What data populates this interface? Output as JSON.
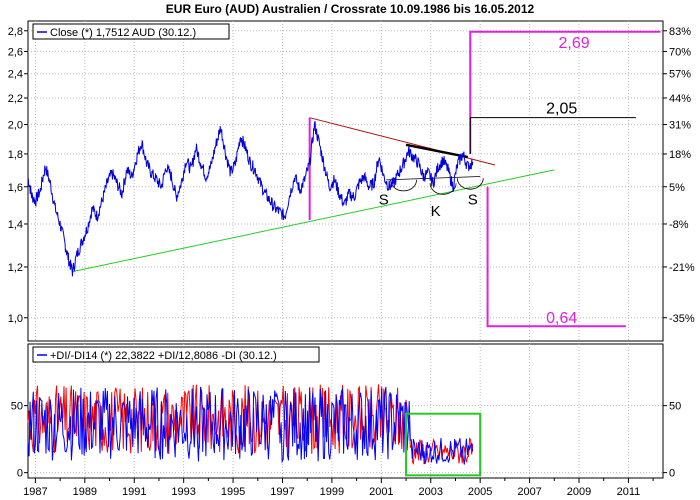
{
  "chart_data": [
    {
      "type": "line",
      "title": "EUR Euro (AUD) Australien / Crossrate 10.09.1986 bis 16.05.2012",
      "legend": "Close (*) 1,7512 AUD (30.12.)",
      "y_scale": "log",
      "ylim": [
        0.92,
        2.9
      ],
      "y_ticks": [
        "1,0",
        "1,2",
        "1,4",
        "1,6",
        "1,8",
        "2,0",
        "2,2",
        "2,4",
        "2,6",
        "2,8"
      ],
      "y_ticks_values": [
        1.0,
        1.2,
        1.4,
        1.6,
        1.8,
        2.0,
        2.2,
        2.4,
        2.6,
        2.8
      ],
      "y2_ticks": [
        "-35%",
        "-21%",
        "-8%",
        "5%",
        "18%",
        "31%",
        "44%",
        "57%",
        "70%",
        "83%"
      ],
      "x_ticks": [
        "1987",
        "1989",
        "1991",
        "1993",
        "1995",
        "1997",
        "1999",
        "2001",
        "2003",
        "2005",
        "2007",
        "2009",
        "2011"
      ],
      "xlim": [
        1986.7,
        2012.4
      ],
      "grid": true,
      "series": [
        {
          "name": "Close",
          "color": "#0000dd",
          "x": [
            1986.7,
            1986.85,
            1987.0,
            1987.2,
            1987.4,
            1987.6,
            1987.8,
            1988.0,
            1988.2,
            1988.35,
            1988.5,
            1988.7,
            1988.9,
            1989.1,
            1989.3,
            1989.5,
            1989.7,
            1989.9,
            1990.1,
            1990.3,
            1990.5,
            1990.7,
            1990.9,
            1991.1,
            1991.3,
            1991.5,
            1991.7,
            1991.9,
            1992.1,
            1992.3,
            1992.5,
            1992.7,
            1992.9,
            1993.1,
            1993.3,
            1993.5,
            1993.7,
            1993.9,
            1994.1,
            1994.3,
            1994.5,
            1994.7,
            1994.9,
            1995.1,
            1995.3,
            1995.5,
            1995.7,
            1995.9,
            1996.1,
            1996.3,
            1996.5,
            1996.7,
            1996.9,
            1997.1,
            1997.3,
            1997.5,
            1997.7,
            1997.9,
            1998.1,
            1998.3,
            1998.5,
            1998.7,
            1998.9,
            1999.1,
            1999.3,
            1999.5,
            1999.7,
            1999.9,
            2000.1,
            2000.3,
            2000.5,
            2000.7,
            2000.9,
            2001.1,
            2001.3,
            2001.5,
            2001.7,
            2001.9,
            2002.1,
            2002.3,
            2002.5,
            2002.7,
            2002.9,
            2003.1,
            2003.3,
            2003.5,
            2003.7,
            2003.9,
            2004.1,
            2004.3,
            2004.5,
            2004.7
          ],
          "values": [
            1.65,
            1.55,
            1.52,
            1.58,
            1.72,
            1.62,
            1.48,
            1.4,
            1.3,
            1.23,
            1.18,
            1.26,
            1.32,
            1.38,
            1.48,
            1.44,
            1.52,
            1.62,
            1.68,
            1.62,
            1.56,
            1.7,
            1.66,
            1.78,
            1.88,
            1.74,
            1.68,
            1.64,
            1.6,
            1.72,
            1.66,
            1.54,
            1.62,
            1.76,
            1.7,
            1.84,
            1.74,
            1.66,
            1.72,
            1.86,
            1.98,
            1.8,
            1.68,
            1.74,
            1.92,
            1.84,
            1.74,
            1.7,
            1.62,
            1.56,
            1.52,
            1.48,
            1.46,
            1.44,
            1.56,
            1.66,
            1.58,
            1.64,
            1.74,
            2.0,
            1.86,
            1.72,
            1.6,
            1.64,
            1.56,
            1.5,
            1.56,
            1.54,
            1.62,
            1.66,
            1.6,
            1.62,
            1.78,
            1.66,
            1.6,
            1.62,
            1.68,
            1.74,
            1.82,
            1.78,
            1.74,
            1.66,
            1.68,
            1.62,
            1.72,
            1.76,
            1.7,
            1.6,
            1.74,
            1.8,
            1.72,
            1.75
          ]
        }
      ],
      "annotations": {
        "values": [
          "2,69",
          "2,05",
          "0,64"
        ],
        "patterns": [
          "S",
          "K",
          "S"
        ]
      }
    },
    {
      "type": "line",
      "legend": "+DI/-DI14 (*) 22,3822 +DI/12,8086 -DI (30.12.)",
      "ylim": [
        -4,
        96
      ],
      "y_ticks": [
        "0",
        "50"
      ],
      "y_ticks_values": [
        0,
        50
      ],
      "grid": true,
      "series": [
        {
          "name": "+DI",
          "color": "#0000ff",
          "x_range": [
            1986.7,
            2004.7
          ],
          "values": []
        },
        {
          "name": "-DI",
          "color": "#ff0000",
          "x_range": [
            1986.7,
            2004.7
          ],
          "values": []
        }
      ]
    }
  ],
  "colors": {
    "price": "#0000dd",
    "plus_di": "#0000ff",
    "minus_di": "#ff0000",
    "magenta": "#e020e0",
    "green": "#22cc22",
    "trend_red": "#b01010"
  }
}
